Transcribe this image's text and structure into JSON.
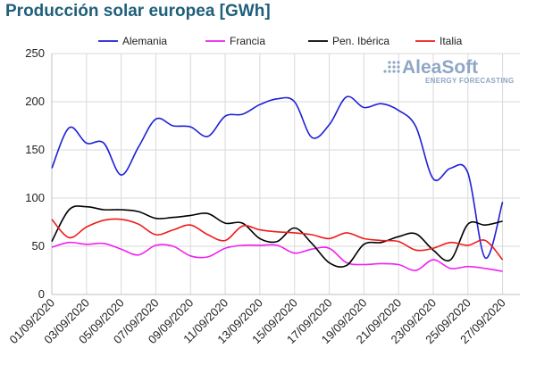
{
  "title": "Producción solar europea [GWh]",
  "logo": {
    "name": "AleaSoft",
    "tagline": "ENERGY FORECASTING",
    "color": "#8fa6c6"
  },
  "chart_data": {
    "type": "line",
    "title": "Producción solar europea [GWh]",
    "xlabel": "",
    "ylabel": "",
    "ylim": [
      0,
      250
    ],
    "yticks": [
      0,
      50,
      100,
      150,
      200,
      250
    ],
    "grid": true,
    "legend_placement": "top",
    "x": [
      "01/09/2020",
      "02/09/2020",
      "03/09/2020",
      "04/09/2020",
      "05/09/2020",
      "06/09/2020",
      "07/09/2020",
      "08/09/2020",
      "09/09/2020",
      "10/09/2020",
      "11/09/2020",
      "12/09/2020",
      "13/09/2020",
      "14/09/2020",
      "15/09/2020",
      "16/09/2020",
      "17/09/2020",
      "18/09/2020",
      "19/09/2020",
      "20/09/2020",
      "21/09/2020",
      "22/09/2020",
      "23/09/2020",
      "24/09/2020",
      "25/09/2020",
      "26/09/2020",
      "27/09/2020",
      "28/09/2020"
    ],
    "xtick_labels": [
      "01/09/2020",
      "03/09/2020",
      "05/09/2020",
      "07/09/2020",
      "09/09/2020",
      "11/09/2020",
      "13/09/2020",
      "15/09/2020",
      "17/09/2020",
      "19/09/2020",
      "21/09/2020",
      "23/09/2020",
      "25/09/2020",
      "27/09/2020"
    ],
    "series": [
      {
        "name": "Alemania",
        "color": "#1f1fd6",
        "values": [
          131,
          173,
          157,
          157,
          124,
          153,
          182,
          175,
          174,
          164,
          185,
          187,
          197,
          203,
          200,
          163,
          176,
          205,
          194,
          198,
          191,
          174,
          120,
          131,
          126,
          38,
          96,
          null
        ]
      },
      {
        "name": "Francia",
        "color": "#f020f0",
        "values": [
          49,
          54,
          52,
          53,
          47,
          41,
          51,
          50,
          40,
          39,
          48,
          51,
          51,
          51,
          43,
          47,
          48,
          33,
          31,
          32,
          31,
          25,
          36,
          27,
          29,
          27,
          24,
          null
        ]
      },
      {
        "name": "Pen. Ibérica",
        "color": "#000000",
        "values": [
          55,
          88,
          91,
          88,
          88,
          86,
          79,
          80,
          82,
          84,
          74,
          74,
          58,
          55,
          69,
          53,
          33,
          30,
          52,
          54,
          60,
          63,
          46,
          36,
          73,
          72,
          76,
          null
        ]
      },
      {
        "name": "Italia",
        "color": "#ee1c1c",
        "values": [
          78,
          59,
          70,
          77,
          78,
          73,
          62,
          67,
          72,
          62,
          56,
          71,
          67,
          65,
          64,
          62,
          58,
          64,
          58,
          56,
          55,
          46,
          48,
          54,
          51,
          56,
          36,
          null
        ]
      }
    ]
  }
}
